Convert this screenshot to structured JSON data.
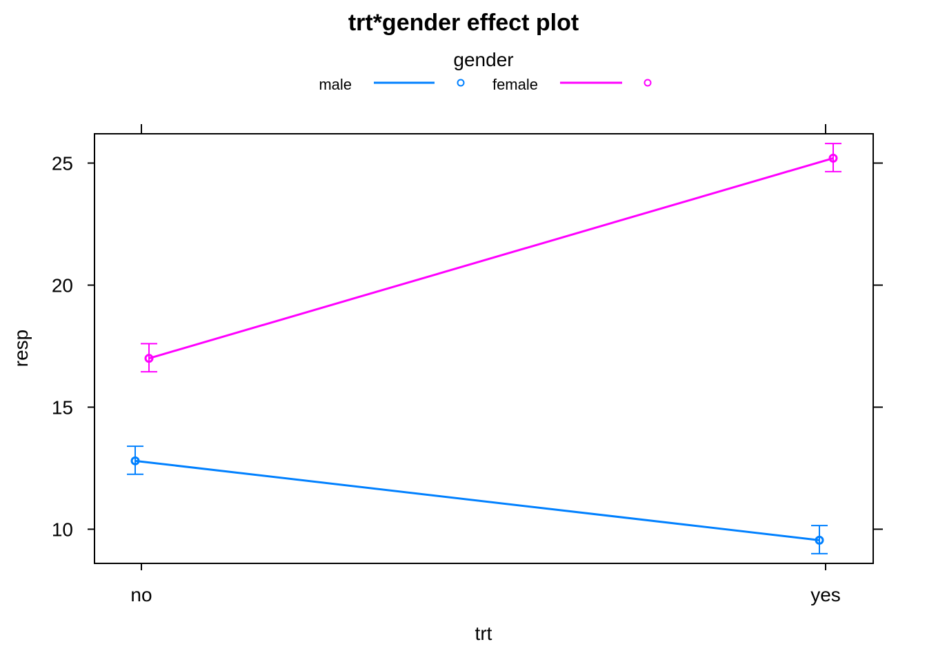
{
  "chart_data": {
    "type": "line",
    "title": "trt*gender effect plot",
    "legend": {
      "title": "gender",
      "placement": "top"
    },
    "xlabel": "trt",
    "ylabel": "resp",
    "categories": [
      "no",
      "yes"
    ],
    "yticks": [
      10,
      15,
      20,
      25
    ],
    "ylim": [
      8.6,
      26.2
    ],
    "grid": false,
    "series": [
      {
        "name": "male",
        "color": "#0080ff",
        "values": [
          12.8,
          9.55
        ],
        "lower": [
          12.25,
          9.0
        ],
        "upper": [
          13.4,
          10.15
        ]
      },
      {
        "name": "female",
        "color": "#ff00ff",
        "values": [
          17.0,
          25.2
        ],
        "lower": [
          16.45,
          24.65
        ],
        "upper": [
          17.6,
          25.8
        ]
      }
    ]
  }
}
